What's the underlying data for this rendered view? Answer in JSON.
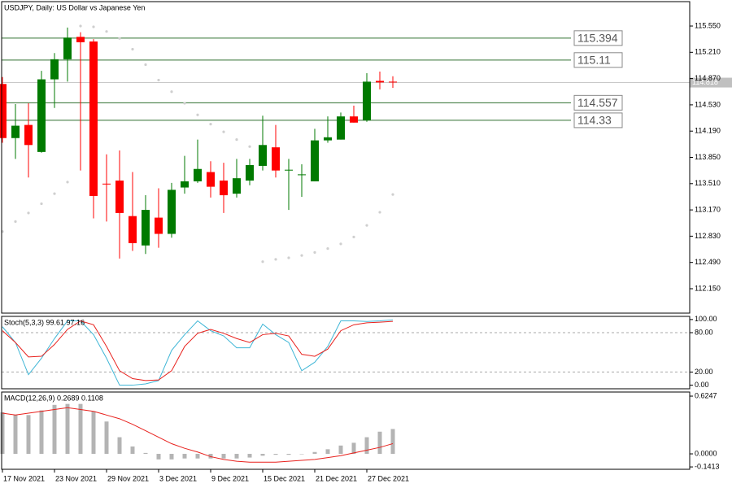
{
  "chart_data": [
    {
      "type": "candlestick",
      "title": "USDJPY, Daily:  US Dollar vs Japanese Yen",
      "categories": [
        "17 Nov 2021",
        null,
        null,
        null,
        "23 Nov 2021",
        null,
        null,
        null,
        "29 Nov 2021",
        null,
        null,
        null,
        "3 Dec 2021",
        null,
        null,
        null,
        "9 Dec 2021",
        null,
        null,
        null,
        "15 Dec 2021",
        null,
        null,
        null,
        "21 Dec 2021",
        null,
        null,
        null,
        "27 Dec 2021",
        null,
        null
      ],
      "open": [
        114.8,
        114.1,
        114.27,
        113.92,
        114.86,
        115.12,
        115.41,
        115.35,
        113.51,
        113.55,
        113.09,
        112.71,
        113.07,
        112.86,
        113.46,
        113.54,
        113.66,
        113.55,
        113.38,
        113.55,
        113.74,
        113.98,
        113.68,
        113.63,
        113.54,
        114.07,
        114.08,
        114.38,
        114.33,
        114.84,
        114.83
      ],
      "high": [
        114.89,
        114.54,
        114.55,
        114.97,
        115.2,
        115.53,
        115.47,
        115.38,
        113.89,
        113.94,
        113.66,
        113.36,
        113.45,
        113.52,
        113.87,
        114.08,
        113.8,
        113.78,
        113.83,
        113.83,
        114.39,
        114.27,
        113.83,
        113.76,
        114.22,
        114.38,
        114.43,
        114.52,
        114.94,
        114.96,
        114.9
      ],
      "low": [
        114.04,
        113.83,
        113.59,
        113.91,
        114.49,
        114.83,
        113.68,
        113.06,
        113.02,
        112.54,
        112.64,
        112.6,
        112.68,
        112.81,
        113.38,
        113.52,
        113.33,
        113.13,
        113.33,
        113.49,
        113.68,
        113.59,
        113.17,
        113.34,
        113.54,
        114.04,
        114.08,
        114.3,
        114.31,
        114.73,
        114.75
      ],
      "close": [
        114.1,
        114.26,
        114.01,
        114.86,
        115.12,
        115.4,
        115.34,
        113.35,
        113.5,
        113.13,
        112.74,
        113.17,
        112.86,
        113.43,
        113.54,
        113.7,
        113.47,
        113.36,
        113.58,
        113.75,
        114.01,
        113.68,
        113.69,
        113.63,
        114.07,
        114.11,
        114.38,
        114.3,
        114.83,
        114.82,
        114.82
      ],
      "sar": [
        112.89,
        113.02,
        113.13,
        113.25,
        113.38,
        113.53,
        115.55,
        115.54,
        115.48,
        115.39,
        115.25,
        115.05,
        114.85,
        114.7,
        114.55,
        114.4,
        114.28,
        114.18,
        114.08,
        113.99,
        112.5,
        112.53,
        112.55,
        112.58,
        112.62,
        112.67,
        112.73,
        112.82,
        112.97,
        113.14,
        113.37
      ],
      "up_color": "#007a00",
      "down_color": "#ff0000",
      "sar_color": "#cfcfcf",
      "levels": [
        115.394,
        115.11,
        114.557,
        114.33
      ],
      "level_color": "#2f6f2f",
      "current_price": 114.818,
      "ylim": [
        111.834,
        115.866
      ],
      "yticks": [
        {
          "value": 115.55,
          "label": "115.550"
        },
        {
          "value": 115.21,
          "label": "115.210"
        },
        {
          "value": 114.87,
          "label": "114.870"
        },
        {
          "value": 114.53,
          "label": "114.530"
        },
        {
          "value": 114.19,
          "label": "114.190"
        },
        {
          "value": 113.85,
          "label": "113.850"
        },
        {
          "value": 113.51,
          "label": "113.510"
        },
        {
          "value": 113.17,
          "label": "113.170"
        },
        {
          "value": 112.83,
          "label": "112.830"
        },
        {
          "value": 112.49,
          "label": "112.490"
        },
        {
          "value": 112.15,
          "label": "112.150"
        }
      ]
    },
    {
      "type": "line",
      "title": "Stoch(5,3,3) 99.61 97.16",
      "series": [
        {
          "color": "#3fb6d6",
          "values": [
            89,
            65,
            16,
            41,
            71,
            98,
            98,
            77,
            41,
            0,
            0,
            2,
            7,
            53,
            77,
            98,
            83,
            75,
            57,
            57,
            93,
            77,
            65,
            22,
            35,
            59,
            98,
            98,
            97,
            98,
            99.61
          ]
        },
        {
          "color": "#e8201c",
          "values": [
            83,
            65,
            43,
            44,
            62,
            85,
            98,
            92,
            59,
            22,
            10,
            7,
            8,
            22,
            59,
            79,
            85,
            79,
            71,
            65,
            77,
            79,
            75,
            47,
            44,
            55,
            83,
            92,
            95,
            96,
            97.16
          ]
        }
      ],
      "levels": [
        80,
        20
      ],
      "ylim": [
        -5.5,
        104.8
      ],
      "yticks": [
        {
          "value": 100,
          "label": "100.00"
        },
        {
          "value": 80,
          "label": "80.00"
        },
        {
          "value": 20,
          "label": "20.00"
        },
        {
          "value": 0,
          "label": "0.00"
        }
      ]
    },
    {
      "type": "macd",
      "title": "MACD(12,26,9) 0.2689 0.1108",
      "values": [
        0.45,
        0.42,
        0.42,
        0.47,
        0.53,
        0.54,
        0.54,
        0.46,
        0.35,
        0.18,
        0.08,
        0.01,
        -0.06,
        -0.06,
        -0.05,
        -0.05,
        -0.05,
        -0.05,
        -0.05,
        -0.04,
        -0.02,
        -0.01,
        -0.01,
        0.0,
        0.02,
        0.05,
        0.09,
        0.12,
        0.18,
        0.24,
        0.2689
      ],
      "color": "#b4b4b4",
      "signal": {
        "color": "#e8201c",
        "values": [
          0.44,
          0.42,
          0.44,
          0.46,
          0.48,
          0.5,
          0.48,
          0.46,
          0.42,
          0.38,
          0.32,
          0.25,
          0.18,
          0.11,
          0.06,
          0.02,
          -0.03,
          -0.06,
          -0.08,
          -0.09,
          -0.09,
          -0.09,
          -0.08,
          -0.07,
          -0.06,
          -0.04,
          -0.02,
          0.01,
          0.04,
          0.07,
          0.1108
        ]
      },
      "ylim": [
        -0.167,
        0.669
      ],
      "yticks": [
        0.6247,
        {
          "value": 0,
          "label": "0.0000"
        },
        -0.1413
      ]
    }
  ]
}
